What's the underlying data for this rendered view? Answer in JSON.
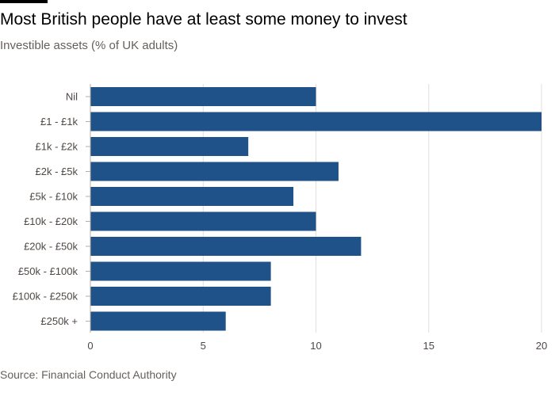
{
  "header": {
    "title": "Most British people have at least some money to invest",
    "subtitle": "Investible assets (% of UK adults)"
  },
  "footer": {
    "source": "Source: Financial Conduct Authority"
  },
  "colors": {
    "bar": "#1f5289",
    "grid": "#e3dedb",
    "axis": "#b3aea9",
    "text": "#4d4845"
  },
  "chart_data": {
    "type": "bar",
    "orientation": "horizontal",
    "categories": [
      "Nil",
      "£1 - £1k",
      "£1k - £2k",
      "£2k - £5k",
      "£5k - £10k",
      "£10k - £20k",
      "£20k - £50k",
      "£50k - £100k",
      "£100k - £250k",
      "£250k +"
    ],
    "values": [
      10,
      20,
      7,
      11,
      9,
      10,
      12,
      8,
      8,
      6
    ],
    "xlim": [
      0,
      20
    ],
    "xticks": [
      0,
      5,
      10,
      15,
      20
    ],
    "grid": true,
    "legend": "none"
  }
}
